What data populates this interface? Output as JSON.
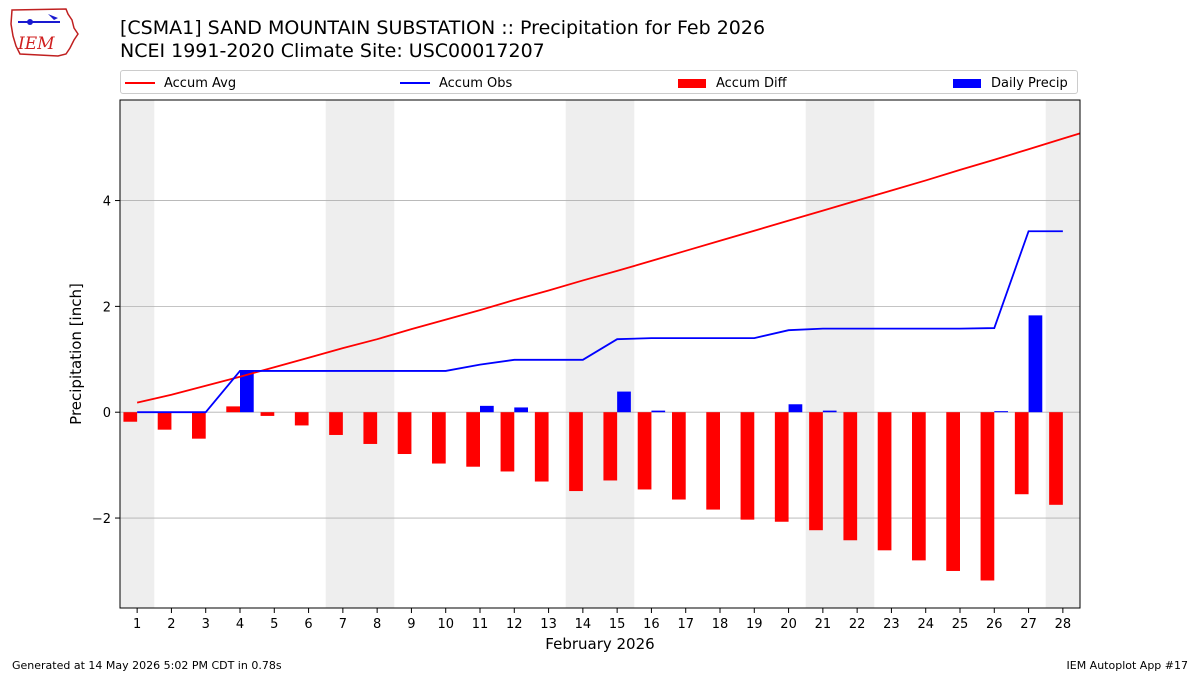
{
  "header": {
    "title_line1": "[CSMA1] SAND MOUNTAIN SUBSTATION :: Precipitation for Feb 2026",
    "title_line2": "NCEI 1991-2020 Climate Site: USC00017207",
    "logo_text": "IEM"
  },
  "legend": {
    "placement": "top",
    "items": [
      {
        "label": "Accum Avg",
        "color": "#ff0000",
        "kind": "line"
      },
      {
        "label": "Accum Obs",
        "color": "#0000ff",
        "kind": "line"
      },
      {
        "label": "Accum Diff",
        "color": "#ff0000",
        "kind": "bar"
      },
      {
        "label": "Daily Precip",
        "color": "#0000ff",
        "kind": "bar"
      }
    ]
  },
  "footer": {
    "generated": "Generated at 14 May 2026 5:02 PM CDT in 0.78s",
    "app": "IEM Autoplot App #17"
  },
  "chart_data": {
    "type": "bar",
    "xlabel": "February 2026",
    "ylabel": "Precipitation [inch]",
    "ylim": [
      -3.7,
      5.9
    ],
    "xlim": [
      0.5,
      28.5
    ],
    "yticks": [
      -2,
      0,
      2,
      4
    ],
    "grid": "horizontal",
    "weekend_shading": [
      [
        0.5,
        1.5
      ],
      [
        6.5,
        8.5
      ],
      [
        13.5,
        15.5
      ],
      [
        20.5,
        22.5
      ],
      [
        27.5,
        28.5
      ]
    ],
    "colors": {
      "avg": "#ff0000",
      "obs": "#0000ff",
      "diff": "#ff0000",
      "daily": "#0000ff",
      "shade": "#eeeeee",
      "grid": "#b0b0b0"
    },
    "days": [
      1,
      2,
      3,
      4,
      5,
      6,
      7,
      8,
      9,
      10,
      11,
      12,
      13,
      14,
      15,
      16,
      17,
      18,
      19,
      20,
      21,
      22,
      23,
      24,
      25,
      26,
      27,
      28
    ],
    "series": [
      {
        "name": "Accum Avg",
        "type": "line",
        "x_extent": [
          1,
          28.5
        ],
        "values": [
          0.18,
          0.33,
          0.5,
          0.67,
          0.85,
          1.03,
          1.21,
          1.38,
          1.57,
          1.75,
          1.93,
          2.12,
          2.3,
          2.49,
          2.67,
          2.86,
          3.05,
          3.24,
          3.43,
          3.62,
          3.81,
          4.0,
          4.19,
          4.38,
          4.58,
          4.77,
          4.97,
          5.17
        ]
      },
      {
        "name": "Accum Obs",
        "type": "line",
        "values": [
          0.0,
          0.0,
          0.0,
          0.78,
          0.78,
          0.78,
          0.78,
          0.78,
          0.78,
          0.78,
          0.9,
          0.99,
          0.99,
          0.99,
          1.38,
          1.4,
          1.4,
          1.4,
          1.4,
          1.55,
          1.58,
          1.58,
          1.58,
          1.58,
          1.58,
          1.59,
          3.42,
          3.42
        ]
      },
      {
        "name": "Accum Diff",
        "type": "bar",
        "values": [
          -0.18,
          -0.33,
          -0.5,
          0.11,
          -0.07,
          -0.25,
          -0.43,
          -0.6,
          -0.79,
          -0.97,
          -1.03,
          -1.12,
          -1.31,
          -1.49,
          -1.29,
          -1.46,
          -1.65,
          -1.84,
          -2.03,
          -2.07,
          -2.23,
          -2.42,
          -2.61,
          -2.8,
          -3.0,
          -3.18,
          -1.55,
          -1.75
        ]
      },
      {
        "name": "Daily Precip",
        "type": "bar",
        "values": [
          0,
          0,
          0,
          0.78,
          0,
          0,
          0,
          0,
          0,
          0,
          0.12,
          0.09,
          0,
          0,
          0.39,
          0.03,
          0,
          0,
          0,
          0.15,
          0.03,
          0,
          0,
          0,
          0,
          0.02,
          1.83,
          0
        ]
      }
    ]
  }
}
